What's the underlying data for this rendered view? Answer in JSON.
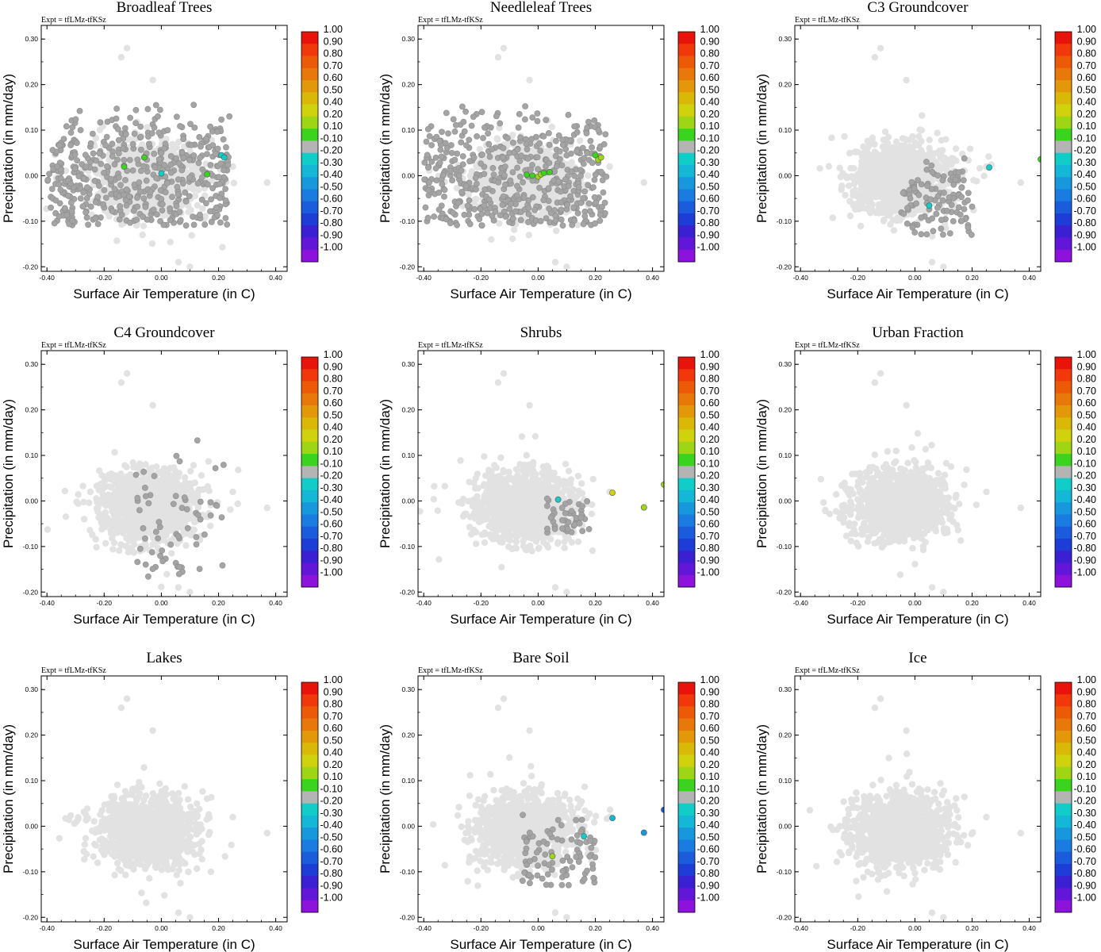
{
  "figure": {
    "expt_label": "Expt = tfLMz-tfKSz",
    "xlabel": "Surface Air Temperature (in C)",
    "ylabel": "Precipitation (in mm/day)"
  },
  "colorbar": {
    "labels": [
      "1.00",
      "0.90",
      "0.80",
      "0.70",
      "0.60",
      "0.50",
      "0.40",
      "0.20",
      "0.10",
      "-0.10",
      "-0.20",
      "-0.30",
      "-0.40",
      "-0.50",
      "-0.60",
      "-0.70",
      "-0.80",
      "-0.90",
      "-1.00"
    ],
    "colors": [
      "#e8140c",
      "#f0380a",
      "#ec5a08",
      "#e8780a",
      "#e29808",
      "#d9b808",
      "#cfd20c",
      "#9ed616",
      "#3ad41e",
      "#b4b4b4",
      "#12ccc8",
      "#14b8d6",
      "#1898dc",
      "#1a7ce0",
      "#1a5cdc",
      "#1e3cd6",
      "#3a20d2",
      "#6216d8",
      "#8c12dc"
    ]
  },
  "chart_data": [
    {
      "type": "scatter",
      "title": "Broadleaf Trees",
      "xlabel": "Surface Air Temperature (in C)",
      "ylabel": "Precipitation (in mm/day)",
      "xlim": [
        -0.42,
        0.44
      ],
      "ylim": [
        -0.21,
        0.33
      ],
      "xticks": [
        "-0.40",
        "-0.20",
        "0.00",
        "0.20",
        "0.40"
      ],
      "yticks": [
        "-0.20",
        "-0.10",
        "0.00",
        "0.10",
        "0.20",
        "0.30"
      ],
      "seed": 101,
      "dark_region": {
        "x": [
          -0.4,
          0.24
        ],
        "y": [
          -0.11,
          0.17
        ],
        "density": 0.55,
        "color": "#a4a4a4"
      },
      "highlighted_points": [
        {
          "x": -0.13,
          "y": 0.02,
          "value": 0.1
        },
        {
          "x": -0.06,
          "y": 0.04,
          "value": 0.1
        },
        {
          "x": 0.16,
          "y": 0.003,
          "value": 0.1
        },
        {
          "x": 0.21,
          "y": 0.045,
          "value": -0.2
        },
        {
          "x": 0.22,
          "y": 0.04,
          "value": -0.2
        },
        {
          "x": 0.0,
          "y": 0.005,
          "value": -0.2
        }
      ]
    },
    {
      "type": "scatter",
      "title": "Needleleaf Trees",
      "xlabel": "Surface Air Temperature (in C)",
      "ylabel": "Precipitation (in mm/day)",
      "xlim": [
        -0.42,
        0.44
      ],
      "ylim": [
        -0.21,
        0.33
      ],
      "xticks": [
        "-0.40",
        "-0.20",
        "0.00",
        "0.20",
        "0.40"
      ],
      "yticks": [
        "-0.20",
        "-0.10",
        "0.00",
        "0.10",
        "0.20",
        "0.30"
      ],
      "seed": 202,
      "dark_region": {
        "x": [
          -0.4,
          0.24
        ],
        "y": [
          -0.11,
          0.17
        ],
        "density": 0.55,
        "color": "#a4a4a4"
      },
      "highlighted_points": [
        {
          "x": -0.04,
          "y": 0.002,
          "value": 0.1
        },
        {
          "x": -0.02,
          "y": 0.0,
          "value": 0.1
        },
        {
          "x": 0.0,
          "y": -0.002,
          "value": 0.2
        },
        {
          "x": 0.01,
          "y": 0.003,
          "value": 0.2
        },
        {
          "x": 0.02,
          "y": 0.006,
          "value": 0.1
        },
        {
          "x": 0.04,
          "y": 0.008,
          "value": 0.1
        },
        {
          "x": 0.2,
          "y": 0.045,
          "value": 0.1
        },
        {
          "x": 0.21,
          "y": 0.035,
          "value": 0.2
        },
        {
          "x": 0.22,
          "y": 0.04,
          "value": 0.2
        }
      ]
    },
    {
      "type": "scatter",
      "title": "C3 Groundcover",
      "xlabel": "Surface Air Temperature (in C)",
      "ylabel": "Precipitation (in mm/day)",
      "xlim": [
        -0.42,
        0.44
      ],
      "ylim": [
        -0.21,
        0.33
      ],
      "xticks": [
        "-0.40",
        "-0.20",
        "0.00",
        "0.20",
        "0.40"
      ],
      "yticks": [
        "-0.20",
        "-0.10",
        "0.00",
        "0.10",
        "0.20",
        "0.30"
      ],
      "seed": 303,
      "dark_region": {
        "x": [
          -0.05,
          0.2
        ],
        "y": [
          -0.13,
          0.05
        ],
        "density": 0.12,
        "color": "#a4a4a4"
      },
      "highlighted_points": [
        {
          "x": 0.26,
          "y": 0.018,
          "value": -0.2
        },
        {
          "x": 0.05,
          "y": -0.066,
          "value": -0.2
        },
        {
          "x": 0.44,
          "y": 0.036,
          "value": 0.1
        }
      ]
    },
    {
      "type": "scatter",
      "title": "C4 Groundcover",
      "xlabel": "Surface Air Temperature (in C)",
      "ylabel": "Precipitation (in mm/day)",
      "xlim": [
        -0.42,
        0.44
      ],
      "ylim": [
        -0.21,
        0.33
      ],
      "xticks": [
        "-0.40",
        "-0.20",
        "0.00",
        "0.20",
        "0.40"
      ],
      "yticks": [
        "-0.20",
        "-0.10",
        "0.00",
        "0.10",
        "0.20",
        "0.30"
      ],
      "seed": 404,
      "dark_region": {
        "x": [
          -0.1,
          0.22
        ],
        "y": [
          -0.17,
          0.14
        ],
        "density": 0.07,
        "color": "#a4a4a4"
      },
      "highlighted_points": []
    },
    {
      "type": "scatter",
      "title": "Shrubs",
      "xlabel": "Surface Air Temperature (in C)",
      "ylabel": "Precipitation (in mm/day)",
      "xlim": [
        -0.42,
        0.44
      ],
      "ylim": [
        -0.21,
        0.33
      ],
      "xticks": [
        "-0.40",
        "-0.20",
        "0.00",
        "0.20",
        "0.40"
      ],
      "yticks": [
        "-0.20",
        "-0.10",
        "0.00",
        "0.10",
        "0.20",
        "0.30"
      ],
      "seed": 505,
      "dark_region": {
        "x": [
          0.03,
          0.18
        ],
        "y": [
          -0.07,
          0.02
        ],
        "density": 0.05,
        "color": "#a4a4a4"
      },
      "highlighted_points": [
        {
          "x": 0.07,
          "y": 0.003,
          "value": -0.2
        },
        {
          "x": 0.26,
          "y": 0.018,
          "value": 0.4
        },
        {
          "x": 0.37,
          "y": -0.014,
          "value": 0.2
        },
        {
          "x": 0.44,
          "y": 0.036,
          "value": 0.2
        }
      ]
    },
    {
      "type": "scatter",
      "title": "Urban Fraction",
      "xlabel": "Surface Air Temperature (in C)",
      "ylabel": "Precipitation (in mm/day)",
      "xlim": [
        -0.42,
        0.44
      ],
      "ylim": [
        -0.21,
        0.33
      ],
      "xticks": [
        "-0.40",
        "-0.20",
        "0.00",
        "0.20",
        "0.40"
      ],
      "yticks": [
        "-0.20",
        "-0.10",
        "0.00",
        "0.10",
        "0.20",
        "0.30"
      ],
      "seed": 606,
      "dark_region": null,
      "highlighted_points": []
    },
    {
      "type": "scatter",
      "title": "Lakes",
      "xlabel": "Surface Air Temperature (in C)",
      "ylabel": "Precipitation (in mm/day)",
      "xlim": [
        -0.42,
        0.44
      ],
      "ylim": [
        -0.21,
        0.33
      ],
      "xticks": [
        "-0.40",
        "-0.20",
        "0.00",
        "0.20",
        "0.40"
      ],
      "yticks": [
        "-0.20",
        "-0.10",
        "0.00",
        "0.10",
        "0.20",
        "0.30"
      ],
      "seed": 707,
      "dark_region": null,
      "highlighted_points": []
    },
    {
      "type": "scatter",
      "title": "Bare Soil",
      "xlabel": "Surface Air Temperature (in C)",
      "ylabel": "Precipitation (in mm/day)",
      "xlim": [
        -0.42,
        0.44
      ],
      "ylim": [
        -0.21,
        0.33
      ],
      "xticks": [
        "-0.40",
        "-0.20",
        "0.00",
        "0.20",
        "0.40"
      ],
      "yticks": [
        "-0.20",
        "-0.10",
        "0.00",
        "0.10",
        "0.20",
        "0.30"
      ],
      "seed": 808,
      "dark_region": {
        "x": [
          -0.06,
          0.2
        ],
        "y": [
          -0.13,
          0.04
        ],
        "density": 0.1,
        "color": "#a4a4a4"
      },
      "highlighted_points": [
        {
          "x": 0.26,
          "y": 0.018,
          "value": -0.3
        },
        {
          "x": 0.37,
          "y": -0.014,
          "value": -0.4
        },
        {
          "x": 0.44,
          "y": 0.036,
          "value": -0.6
        },
        {
          "x": 0.16,
          "y": -0.022,
          "value": -0.2
        },
        {
          "x": 0.05,
          "y": -0.066,
          "value": 0.2
        }
      ]
    },
    {
      "type": "scatter",
      "title": "Ice",
      "xlabel": "Surface Air Temperature (in C)",
      "ylabel": "Precipitation (in mm/day)",
      "xlim": [
        -0.42,
        0.44
      ],
      "ylim": [
        -0.21,
        0.33
      ],
      "xticks": [
        "-0.40",
        "-0.20",
        "0.00",
        "0.20",
        "0.40"
      ],
      "yticks": [
        "-0.20",
        "-0.10",
        "0.00",
        "0.10",
        "0.20",
        "0.30"
      ],
      "seed": 909,
      "dark_region": null,
      "highlighted_points": []
    }
  ]
}
